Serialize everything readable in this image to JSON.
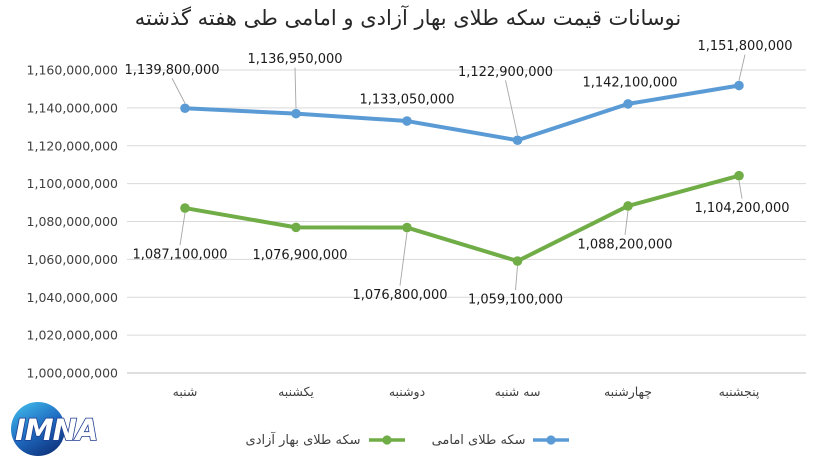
{
  "title": "نوسانات قیمت سکه طلای بهار آزادی و امامی طی هفته گذشته",
  "logo": {
    "text": "IMNA"
  },
  "legend": [
    {
      "label": "سکه طلای بهار آزادی",
      "color": "#70AD47"
    },
    {
      "label": "سکه طلای امامی",
      "color": "#5B9BD5"
    }
  ],
  "colors": {
    "emami_blue": "#5B9BD5",
    "azadi_green": "#70AD47",
    "gridline": "#D9D9D9",
    "axis_line": "#BFBFBF",
    "leader_line": "#A6A6A6",
    "label_text": "#1a1a1a",
    "tick_text": "#404040"
  },
  "chart_data": {
    "type": "line",
    "title": "نوسانات قیمت سکه طلای بهار آزادی و امامی طی هفته گذشته",
    "categories": [
      "شنبه",
      "یکشنبه",
      "دوشنبه",
      "سه شنبه",
      "چهارشنبه",
      "پنجشنبه"
    ],
    "series": [
      {
        "name": "سکه طلای امامی",
        "color": "#5B9BD5",
        "values": [
          1139800000,
          1136950000,
          1133050000,
          1122900000,
          1142100000,
          1151800000
        ],
        "data_labels": [
          "1,139,800,000",
          "1,136,950,000",
          "1,133,050,000",
          "1,122,900,000",
          "1,142,100,000",
          "1,151,800,000"
        ],
        "label_offsets": [
          [
            -13,
            -39
          ],
          [
            -1,
            -55
          ],
          [
            0,
            -22
          ],
          [
            -12,
            -69
          ],
          [
            2,
            -22
          ],
          [
            6,
            -40
          ]
        ],
        "leaders": [
          true,
          true,
          false,
          true,
          false,
          true
        ]
      },
      {
        "name": "سکه طلای بهار آزادی",
        "color": "#70AD47",
        "values": [
          1087100000,
          1076900000,
          1076800000,
          1059100000,
          1088200000,
          1104200000
        ],
        "data_labels": [
          "1,087,100,000",
          "1,076,900,000",
          "1,076,800,000",
          "1,059,100,000",
          "1,088,200,000",
          "1,104,200,000"
        ],
        "label_offsets": [
          [
            -5,
            46
          ],
          [
            4,
            27
          ],
          [
            -7,
            67
          ],
          [
            -2,
            38
          ],
          [
            -3,
            38
          ],
          [
            3,
            32
          ]
        ],
        "leaders": [
          true,
          false,
          true,
          true,
          true,
          true
        ]
      }
    ],
    "ylim": [
      1000000000,
      1160000000
    ],
    "ytick_step": 20000000,
    "ytick_labels": [
      "1,160,000,000",
      "1,140,000,000",
      "1,120,000,000",
      "1,100,000,000",
      "1,080,000,000",
      "1,060,000,000",
      "1,040,000,000",
      "1,020,000,000",
      "1,000,000,000"
    ],
    "grid": true,
    "legend_position": "bottom"
  }
}
